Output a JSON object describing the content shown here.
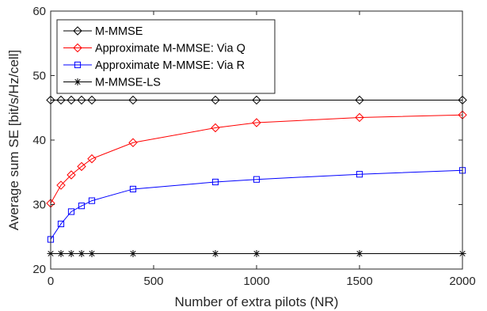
{
  "chart_data": {
    "type": "line",
    "xlabel": "Number of extra pilots (NR)",
    "ylabel": "Average sum SE [bit/s/Hz/cell]",
    "xlim": [
      0,
      2000
    ],
    "ylim": [
      20,
      60
    ],
    "xticks": [
      0,
      500,
      1000,
      1500,
      2000
    ],
    "yticks": [
      20,
      30,
      40,
      50,
      60
    ],
    "grid": false,
    "legend_position": "top-left",
    "x": [
      0,
      50,
      100,
      150,
      200,
      400,
      800,
      1000,
      1500,
      2000
    ],
    "series": [
      {
        "name": "M-MMSE",
        "color": "#000000",
        "marker": "diamond",
        "values": [
          46.2,
          46.2,
          46.2,
          46.2,
          46.2,
          46.2,
          46.2,
          46.2,
          46.2,
          46.2
        ]
      },
      {
        "name": "Approximate M-MMSE: Via Q",
        "color": "#ff0000",
        "marker": "diamond",
        "values": [
          30.2,
          33.0,
          34.6,
          35.9,
          37.1,
          39.6,
          41.9,
          42.7,
          43.5,
          43.9
        ]
      },
      {
        "name": "Approximate M-MMSE: Via R",
        "color": "#0000ff",
        "marker": "square",
        "values": [
          24.6,
          27.0,
          28.9,
          29.8,
          30.6,
          32.4,
          33.5,
          33.9,
          34.7,
          35.3
        ]
      },
      {
        "name": "M-MMSE-LS",
        "color": "#000000",
        "marker": "asterisk",
        "values": [
          22.4,
          22.4,
          22.4,
          22.4,
          22.4,
          22.4,
          22.4,
          22.4,
          22.4,
          22.4
        ]
      }
    ]
  }
}
